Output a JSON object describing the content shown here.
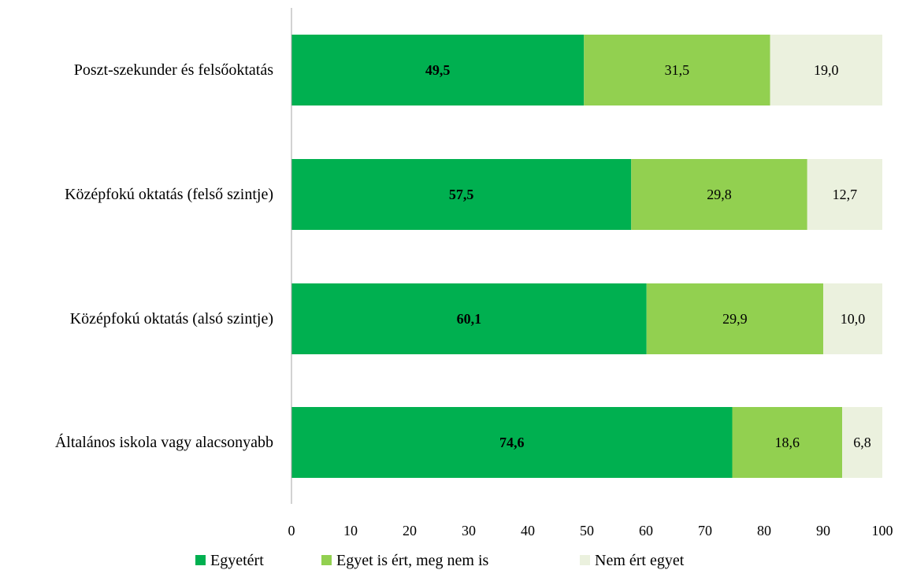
{
  "chart_data": {
    "type": "bar",
    "orientation": "horizontal",
    "stacked": true,
    "categories": [
      "Poszt-szekunder és felsőoktatás",
      "Középfokú oktatás (felső szintje)",
      "Középfokú oktatás (alsó szintje)",
      "Általános iskola vagy alacsonyabb"
    ],
    "series": [
      {
        "name": "Egyetért",
        "color": "#00b050",
        "values": [
          49.5,
          57.5,
          60.1,
          74.6
        ],
        "labels": [
          "49,5",
          "57,5",
          "60,1",
          "74,6"
        ],
        "bold_labels": true
      },
      {
        "name": "Egyet is ért, meg nem is",
        "color": "#92d050",
        "values": [
          31.5,
          29.8,
          29.9,
          18.6
        ],
        "labels": [
          "31,5",
          "29,8",
          "29,9",
          "18,6"
        ],
        "bold_labels": false
      },
      {
        "name": "Nem ért egyet",
        "color": "#ebf1de",
        "values": [
          19.0,
          12.7,
          10.0,
          6.8
        ],
        "labels": [
          "19,0",
          "12,7",
          "10,0",
          "6,8"
        ],
        "bold_labels": false
      }
    ],
    "xlim": [
      0,
      100
    ],
    "xticks": [
      "0",
      "10",
      "20",
      "30",
      "40",
      "50",
      "60",
      "70",
      "80",
      "90",
      "100"
    ],
    "grid": false,
    "legend_position": "bottom",
    "title": "",
    "xlabel": "",
    "ylabel": ""
  }
}
